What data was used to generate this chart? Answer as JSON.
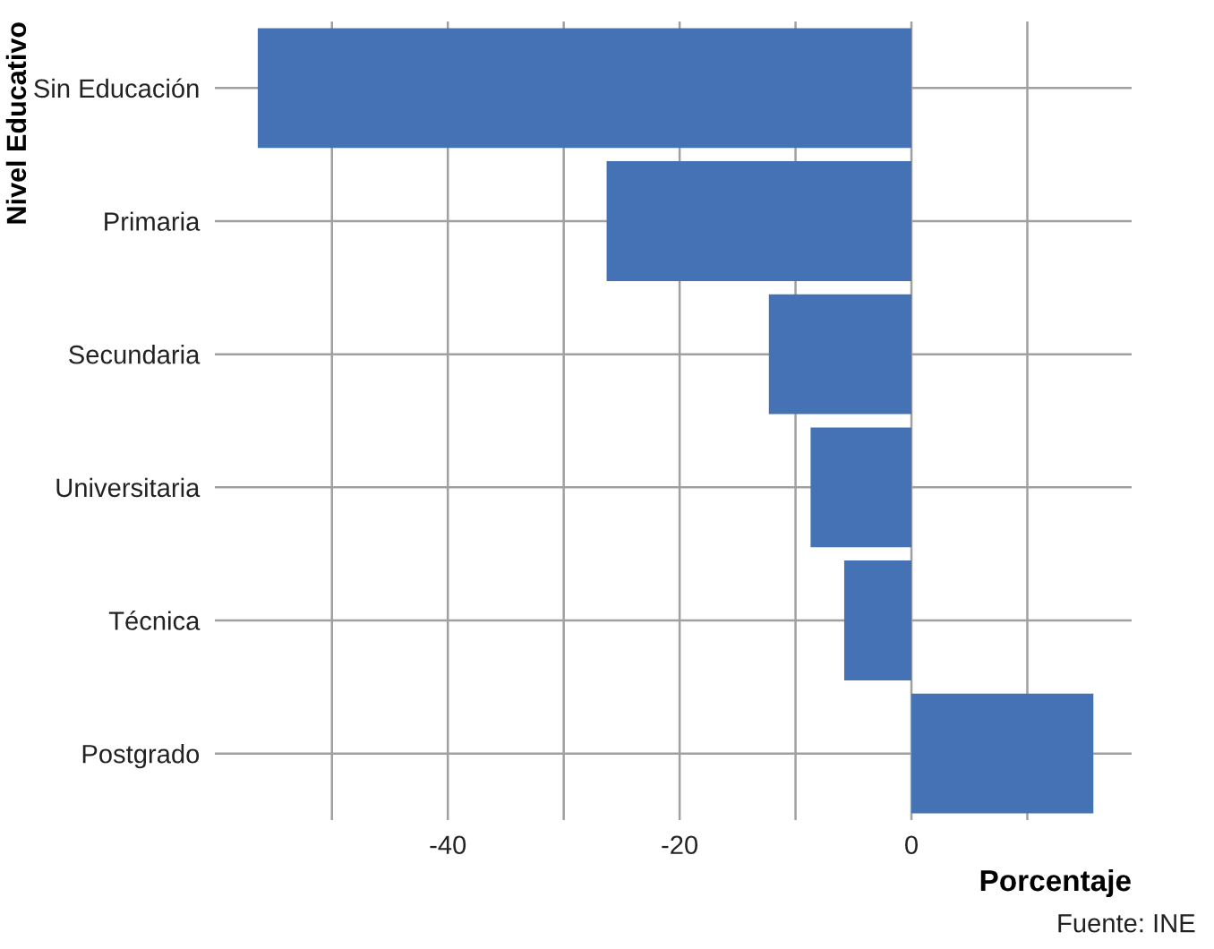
{
  "chart_data": {
    "type": "bar",
    "orientation": "horizontal",
    "xlabel": "Porcentaje",
    "ylabel": "Nivel Educativo",
    "categories": [
      "Sin Educación",
      "Primaria",
      "Secundaria",
      "Universitaria",
      "Técnica",
      "Postgrado"
    ],
    "values": [
      -56.4,
      -26.3,
      -12.3,
      -8.7,
      -5.8,
      15.7
    ],
    "color": "#4472b4",
    "xlim": [
      -60.1,
      19.0
    ],
    "xticks": [
      {
        "value": -50,
        "label": null
      },
      -40,
      {
        "value": -30,
        "label": null
      },
      -20,
      {
        "value": -10,
        "label": null
      },
      0,
      {
        "value": 10,
        "label": null
      }
    ],
    "grid": true,
    "annotations": [
      "Fuente: INE"
    ]
  }
}
